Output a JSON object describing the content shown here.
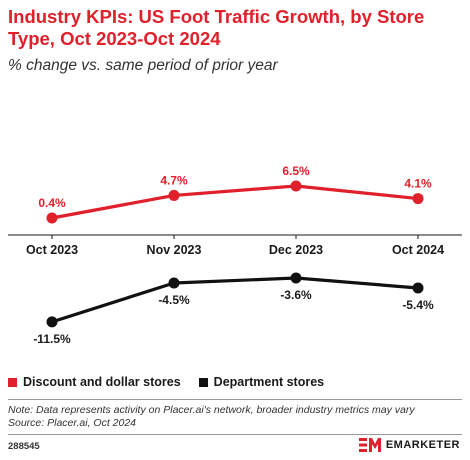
{
  "header": {
    "title": "Industry KPIs: US Foot Traffic Growth, by Store Type, Oct 2023-Oct 2024",
    "subtitle": "% change vs. same period of prior year"
  },
  "chart_data": {
    "type": "line",
    "categories": [
      "Oct 2023",
      "Nov 2023",
      "Dec 2023",
      "Oct 2024"
    ],
    "series": [
      {
        "name": "Discount and dollar stores",
        "values": [
          0.4,
          4.7,
          6.5,
          4.1
        ],
        "labels": [
          "0.4%",
          "4.7%",
          "6.5%",
          "4.1%"
        ],
        "color": "#e0202b"
      },
      {
        "name": "Department stores",
        "values": [
          -11.5,
          -4.5,
          -3.6,
          -5.4
        ],
        "labels": [
          "-11.5%",
          "-4.5%",
          "-3.6%",
          "-5.4%"
        ],
        "color": "#111111"
      }
    ],
    "ylim": [
      -13,
      8
    ],
    "grid": false,
    "legend_position": "bottom-left"
  },
  "footer": {
    "note": "Note: Data represents activity on Placer.ai's network, broader industry metrics may vary",
    "source": "Source: Placer.ai, Oct 2024",
    "chart_id": "288545",
    "brand_name": "EMARKETER",
    "brand_color": "#e0202b"
  }
}
